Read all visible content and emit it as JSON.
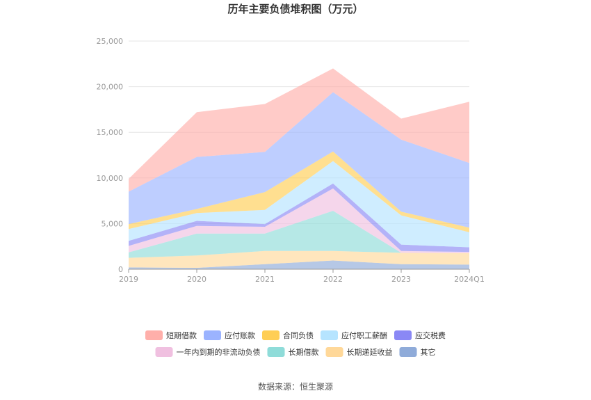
{
  "source_label": "数据来源：恒生聚源",
  "chart_data": {
    "type": "area",
    "stacked": true,
    "title": "历年主要负债堆积图（万元）",
    "x": [
      "2019",
      "2020",
      "2021",
      "2022",
      "2023",
      "2024Q1"
    ],
    "ylim": [
      0,
      25000
    ],
    "yticks": [
      0,
      5000,
      10000,
      15000,
      20000,
      25000
    ],
    "ytick_labels": [
      "0",
      "5,000",
      "10,000",
      "15,000",
      "20,000",
      "25,000"
    ],
    "grid": true,
    "legend_position": "bottom",
    "series": [
      {
        "name": "其它",
        "color": "#8fabd9",
        "values": [
          200,
          150,
          550,
          950,
          550,
          500
        ]
      },
      {
        "name": "长期递延收益",
        "color": "#ffd899",
        "values": [
          1050,
          1350,
          1450,
          1050,
          1250,
          1250
        ]
      },
      {
        "name": "长期借款",
        "color": "#8fdcd9",
        "values": [
          600,
          2400,
          1900,
          4400,
          0,
          0
        ]
      },
      {
        "name": "一年内到期的非流动负债",
        "color": "#f0c0e0",
        "values": [
          700,
          850,
          750,
          2450,
          200,
          150
        ]
      },
      {
        "name": "应交税费",
        "color": "#8a88f5",
        "values": [
          550,
          550,
          300,
          550,
          700,
          500
        ]
      },
      {
        "name": "应付职工薪酬",
        "color": "#b6e4ff",
        "values": [
          1300,
          850,
          1550,
          2450,
          3200,
          1650
        ]
      },
      {
        "name": "合同负债",
        "color": "#ffce55",
        "values": [
          550,
          450,
          1950,
          1050,
          400,
          500
        ]
      },
      {
        "name": "应付账款",
        "color": "#9bb3ff",
        "values": [
          3550,
          5700,
          4400,
          6500,
          7900,
          7100
        ]
      },
      {
        "name": "短期借款",
        "color": "#ffafaa",
        "values": [
          1400,
          4900,
          5250,
          2600,
          2300,
          6700
        ]
      }
    ],
    "legend_order": [
      "短期借款",
      "应付账款",
      "合同负债",
      "应付职工薪酬",
      "应交税费",
      "一年内到期的非流动负债",
      "长期借款",
      "长期递延收益",
      "其它"
    ]
  }
}
